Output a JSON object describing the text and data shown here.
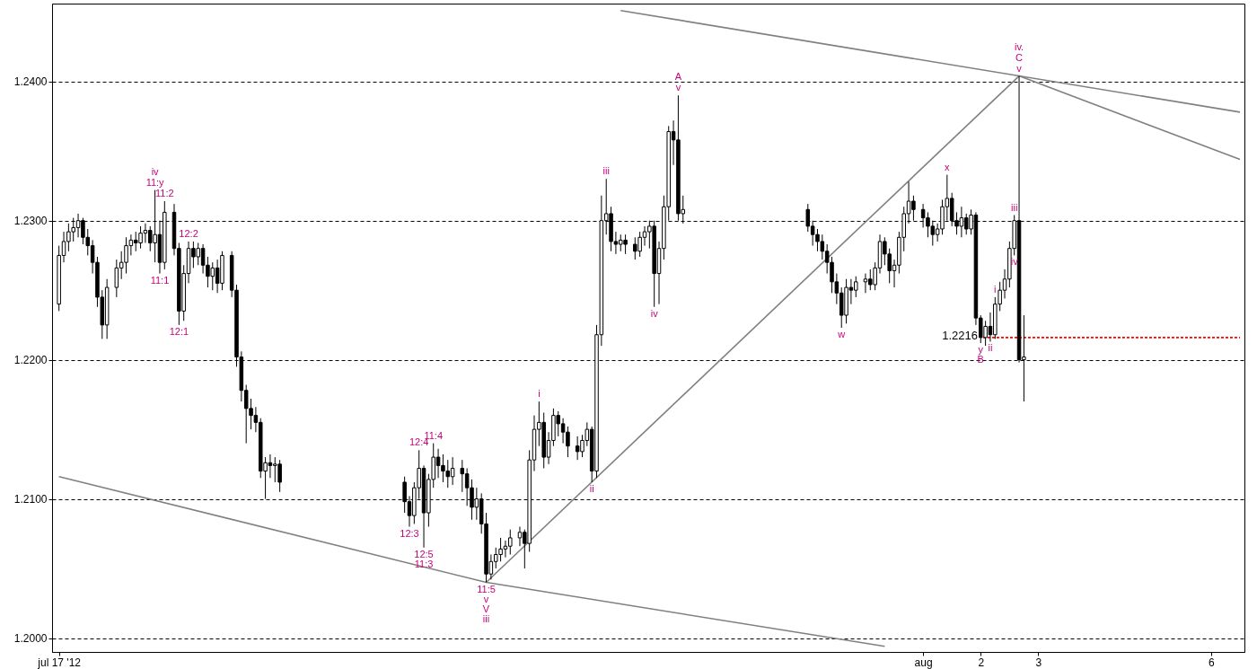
{
  "chart_data": {
    "type": "candlestick",
    "x": [
      "2012-07-17T00:00",
      "2012-07-17T02:00",
      "2012-07-17T04:00",
      "2012-07-17T06:00",
      "2012-07-17T08:00",
      "2012-07-17T10:00",
      "2012-07-17T12:00",
      "2012-07-17T14:00",
      "2012-07-17T16:00",
      "2012-07-17T18:00",
      "2012-07-17T20:00",
      "2012-07-18T00:00",
      "2012-07-18T02:00",
      "2012-07-18T04:00",
      "2012-07-18T06:00",
      "2012-07-18T08:00",
      "2012-07-18T10:00",
      "2012-07-18T12:00",
      "2012-07-18T14:00",
      "2012-07-18T16:00",
      "2012-07-18T18:00",
      "2012-07-18T20:00",
      "2012-07-19T00:00",
      "2012-07-19T02:00",
      "2012-07-19T04:00",
      "2012-07-19T06:00",
      "2012-07-19T08:00",
      "2012-07-19T10:00",
      "2012-07-19T12:00",
      "2012-07-19T14:00",
      "2012-07-19T16:00",
      "2012-07-19T18:00",
      "2012-07-19T20:00",
      "2012-07-20T00:00",
      "2012-07-20T02:00",
      "2012-07-20T04:00",
      "2012-07-20T06:00",
      "2012-07-20T08:00",
      "2012-07-20T10:00",
      "2012-07-20T12:00",
      "2012-07-20T14:00",
      "2012-07-20T16:00",
      "2012-07-20T18:00",
      "2012-07-20T20:00",
      "2012-07-23T00:00",
      "2012-07-23T02:00",
      "2012-07-23T04:00",
      "2012-07-23T06:00",
      "2012-07-23T08:00",
      "2012-07-23T10:00",
      "2012-07-23T12:00",
      "2012-07-23T14:00",
      "2012-07-23T16:00",
      "2012-07-23T18:00",
      "2012-07-23T20:00",
      "2012-07-24T00:00",
      "2012-07-24T02:00",
      "2012-07-24T04:00",
      "2012-07-24T06:00",
      "2012-07-24T08:00",
      "2012-07-24T10:00",
      "2012-07-24T12:00",
      "2012-07-24T14:00",
      "2012-07-24T16:00",
      "2012-07-24T18:00",
      "2012-07-24T20:00",
      "2012-07-25T00:00",
      "2012-07-25T02:00",
      "2012-07-25T04:00",
      "2012-07-25T06:00",
      "2012-07-25T08:00",
      "2012-07-25T10:00",
      "2012-07-25T12:00",
      "2012-07-25T14:00",
      "2012-07-25T16:00",
      "2012-07-25T18:00",
      "2012-07-25T20:00",
      "2012-07-26T00:00",
      "2012-07-26T02:00",
      "2012-07-26T04:00",
      "2012-07-26T06:00",
      "2012-07-26T08:00",
      "2012-07-26T10:00",
      "2012-07-26T12:00",
      "2012-07-26T14:00",
      "2012-07-26T16:00",
      "2012-07-26T18:00",
      "2012-07-26T20:00",
      "2012-07-27T00:00",
      "2012-07-27T02:00",
      "2012-07-27T04:00",
      "2012-07-27T06:00",
      "2012-07-27T08:00",
      "2012-07-27T10:00",
      "2012-07-27T12:00",
      "2012-07-27T14:00",
      "2012-07-27T16:00",
      "2012-07-27T18:00",
      "2012-07-27T20:00",
      "2012-07-30T00:00",
      "2012-07-30T02:00",
      "2012-07-30T04:00",
      "2012-07-30T06:00",
      "2012-07-30T08:00",
      "2012-07-30T10:00",
      "2012-07-30T12:00",
      "2012-07-30T14:00",
      "2012-07-30T16:00",
      "2012-07-30T18:00",
      "2012-07-30T20:00",
      "2012-07-31T00:00",
      "2012-07-31T02:00",
      "2012-07-31T04:00",
      "2012-07-31T06:00",
      "2012-07-31T08:00",
      "2012-07-31T10:00",
      "2012-07-31T12:00",
      "2012-07-31T14:00",
      "2012-07-31T16:00",
      "2012-07-31T18:00",
      "2012-07-31T20:00",
      "2012-08-01T00:00",
      "2012-08-01T02:00",
      "2012-08-01T04:00",
      "2012-08-01T06:00",
      "2012-08-01T08:00",
      "2012-08-01T10:00",
      "2012-08-01T12:00",
      "2012-08-01T14:00",
      "2012-08-01T16:00",
      "2012-08-01T18:00",
      "2012-08-01T20:00",
      "2012-08-01T22:00",
      "2012-08-02T00:00",
      "2012-08-02T02:00",
      "2012-08-02T04:00",
      "2012-08-02T06:00",
      "2012-08-02T08:00",
      "2012-08-02T10:00",
      "2012-08-02T12:00",
      "2012-08-02T14:00",
      "2012-08-02T16:00",
      "2012-08-02T18:00"
    ],
    "ohlc": [
      [
        1.224,
        1.2282,
        1.2235,
        1.2275
      ],
      [
        1.2275,
        1.2292,
        1.227,
        1.2285
      ],
      [
        1.2285,
        1.2298,
        1.2278,
        1.2292
      ],
      [
        1.2292,
        1.2302,
        1.2285,
        1.2295
      ],
      [
        1.2295,
        1.2305,
        1.2288,
        1.23
      ],
      [
        1.23,
        1.2302,
        1.2283,
        1.2288
      ],
      [
        1.2288,
        1.2294,
        1.2275,
        1.2282
      ],
      [
        1.2282,
        1.2286,
        1.2262,
        1.227
      ],
      [
        1.227,
        1.2274,
        1.2238,
        1.2245
      ],
      [
        1.2245,
        1.225,
        1.2215,
        1.2225
      ],
      [
        1.2225,
        1.2258,
        1.2215,
        1.2252
      ],
      [
        1.2252,
        1.2272,
        1.2245,
        1.2266
      ],
      [
        1.2266,
        1.2278,
        1.2258,
        1.227
      ],
      [
        1.227,
        1.2288,
        1.2262,
        1.2282
      ],
      [
        1.2282,
        1.229,
        1.2275,
        1.2286
      ],
      [
        1.2286,
        1.2292,
        1.2278,
        1.2284
      ],
      [
        1.2284,
        1.2296,
        1.228,
        1.2291
      ],
      [
        1.2291,
        1.2298,
        1.2284,
        1.2293
      ],
      [
        1.2293,
        1.2296,
        1.2278,
        1.2284
      ],
      [
        1.2284,
        1.2322,
        1.227,
        1.229
      ],
      [
        1.229,
        1.23,
        1.2262,
        1.227
      ],
      [
        1.227,
        1.2314,
        1.2265,
        1.2306
      ],
      [
        1.2306,
        1.2312,
        1.2275,
        1.228
      ],
      [
        1.228,
        1.2284,
        1.2225,
        1.2235
      ],
      [
        1.2235,
        1.2268,
        1.2228,
        1.2262
      ],
      [
        1.2262,
        1.2285,
        1.2255,
        1.228
      ],
      [
        1.228,
        1.2285,
        1.2266,
        1.2274
      ],
      [
        1.2274,
        1.2284,
        1.2268,
        1.228
      ],
      [
        1.228,
        1.2283,
        1.2262,
        1.2268
      ],
      [
        1.2268,
        1.2274,
        1.2252,
        1.226
      ],
      [
        1.226,
        1.227,
        1.225,
        1.2266
      ],
      [
        1.2266,
        1.2272,
        1.2248,
        1.2255
      ],
      [
        1.2255,
        1.2278,
        1.225,
        1.2275
      ],
      [
        1.2275,
        1.2278,
        1.2245,
        1.225
      ],
      [
        1.225,
        1.2254,
        1.2195,
        1.2202
      ],
      [
        1.2202,
        1.2206,
        1.217,
        1.2178
      ],
      [
        1.2178,
        1.2182,
        1.214,
        1.2165
      ],
      [
        1.2165,
        1.2172,
        1.215,
        1.216
      ],
      [
        1.216,
        1.2166,
        1.2148,
        1.2155
      ],
      [
        1.2155,
        1.2158,
        1.2115,
        1.212
      ],
      [
        1.212,
        1.213,
        1.21,
        1.2126
      ],
      [
        1.2126,
        1.2132,
        1.2115,
        1.2124
      ],
      [
        1.2124,
        1.213,
        1.2112,
        1.2125
      ],
      [
        1.2125,
        1.2128,
        1.2105,
        1.2112
      ],
      [
        1.2112,
        1.2116,
        1.209,
        1.2098
      ],
      [
        1.2098,
        1.2102,
        1.208,
        1.2088
      ],
      [
        1.2088,
        1.2112,
        1.2082,
        1.2108
      ],
      [
        1.2108,
        1.2135,
        1.21,
        1.2122
      ],
      [
        1.2122,
        1.2124,
        1.2065,
        1.209
      ],
      [
        1.209,
        1.2118,
        1.208,
        1.2114
      ],
      [
        1.2114,
        1.214,
        1.2108,
        1.213
      ],
      [
        1.213,
        1.2136,
        1.2115,
        1.2124
      ],
      [
        1.2124,
        1.2132,
        1.2112,
        1.212
      ],
      [
        1.212,
        1.2128,
        1.2108,
        1.2116
      ],
      [
        1.2116,
        1.213,
        1.211,
        1.2122
      ],
      [
        1.2122,
        1.2128,
        1.2105,
        1.2118
      ],
      [
        1.2118,
        1.2122,
        1.2095,
        1.2108
      ],
      [
        1.2108,
        1.2114,
        1.2085,
        1.2094
      ],
      [
        1.2094,
        1.2108,
        1.2085,
        1.21
      ],
      [
        1.21,
        1.2104,
        1.2075,
        1.2082
      ],
      [
        1.2082,
        1.209,
        1.204,
        1.2046
      ],
      [
        1.2046,
        1.206,
        1.2042,
        1.2055
      ],
      [
        1.2055,
        1.2065,
        1.205,
        1.206
      ],
      [
        1.206,
        1.2072,
        1.2055,
        1.2064
      ],
      [
        1.2064,
        1.207,
        1.2058,
        1.2066
      ],
      [
        1.2066,
        1.2078,
        1.206,
        1.2072
      ],
      [
        1.2072,
        1.208,
        1.2066,
        1.2076
      ],
      [
        1.2076,
        1.2078,
        1.205,
        1.2068
      ],
      [
        1.2068,
        1.2135,
        1.2062,
        1.2128
      ],
      [
        1.2128,
        1.216,
        1.212,
        1.215
      ],
      [
        1.215,
        1.217,
        1.2138,
        1.2155
      ],
      [
        1.2155,
        1.2162,
        1.2122,
        1.213
      ],
      [
        1.213,
        1.2148,
        1.2125,
        1.2142
      ],
      [
        1.2142,
        1.2165,
        1.2138,
        1.216
      ],
      [
        1.216,
        1.2163,
        1.2145,
        1.2154
      ],
      [
        1.2154,
        1.2158,
        1.214,
        1.2148
      ],
      [
        1.2148,
        1.2152,
        1.213,
        1.2138
      ],
      [
        1.2138,
        1.2145,
        1.2128,
        1.2134
      ],
      [
        1.2134,
        1.2146,
        1.213,
        1.2142
      ],
      [
        1.2142,
        1.2155,
        1.2138,
        1.215
      ],
      [
        1.215,
        1.2152,
        1.2112,
        1.212
      ],
      [
        1.212,
        1.2225,
        1.2115,
        1.2218
      ],
      [
        1.2218,
        1.2318,
        1.221,
        1.23
      ],
      [
        1.23,
        1.233,
        1.229,
        1.2305
      ],
      [
        1.2305,
        1.231,
        1.2278,
        1.2285
      ],
      [
        1.2285,
        1.2292,
        1.2276,
        1.2283
      ],
      [
        1.2283,
        1.229,
        1.2278,
        1.2286
      ],
      [
        1.2286,
        1.229,
        1.2276,
        1.2283
      ],
      [
        1.2283,
        1.2288,
        1.2272,
        1.2278
      ],
      [
        1.2278,
        1.2292,
        1.2274,
        1.2288
      ],
      [
        1.2288,
        1.2296,
        1.2282,
        1.2292
      ],
      [
        1.2292,
        1.23,
        1.228,
        1.2296
      ],
      [
        1.2296,
        1.23,
        1.2238,
        1.2262
      ],
      [
        1.2262,
        1.2285,
        1.224,
        1.228
      ],
      [
        1.228,
        1.2318,
        1.2272,
        1.231
      ],
      [
        1.231,
        1.2368,
        1.23,
        1.2364
      ],
      [
        1.2364,
        1.2372,
        1.234,
        1.2358
      ],
      [
        1.2358,
        1.239,
        1.23,
        1.2305
      ],
      [
        1.2305,
        1.2318,
        1.2298,
        1.2308
      ],
      [
        1.2308,
        1.2312,
        1.2292,
        1.2296
      ],
      [
        1.2296,
        1.23,
        1.2282,
        1.229
      ],
      [
        1.229,
        1.2294,
        1.2278,
        1.2285
      ],
      [
        1.2285,
        1.229,
        1.2272,
        1.2278
      ],
      [
        1.2278,
        1.2283,
        1.2262,
        1.227
      ],
      [
        1.227,
        1.2274,
        1.2248,
        1.2256
      ],
      [
        1.2256,
        1.2262,
        1.224,
        1.2248
      ],
      [
        1.2248,
        1.2252,
        1.2223,
        1.2232
      ],
      [
        1.2232,
        1.2258,
        1.2226,
        1.2252
      ],
      [
        1.2252,
        1.2258,
        1.224,
        1.225
      ],
      [
        1.225,
        1.226,
        1.2245,
        1.2256
      ],
      [
        1.2256,
        1.2262,
        1.2248,
        1.2258
      ],
      [
        1.2258,
        1.2265,
        1.225,
        1.2254
      ],
      [
        1.2254,
        1.227,
        1.225,
        1.2266
      ],
      [
        1.2266,
        1.229,
        1.2262,
        1.2285
      ],
      [
        1.2285,
        1.2288,
        1.2268,
        1.2276
      ],
      [
        1.2276,
        1.228,
        1.2255,
        1.2264
      ],
      [
        1.2264,
        1.2272,
        1.2252,
        1.2268
      ],
      [
        1.2268,
        1.2292,
        1.2262,
        1.2288
      ],
      [
        1.2288,
        1.231,
        1.2278,
        1.2305
      ],
      [
        1.2305,
        1.2328,
        1.2298,
        1.2314
      ],
      [
        1.2314,
        1.2318,
        1.23,
        1.2308
      ],
      [
        1.2308,
        1.2312,
        1.2295,
        1.2302
      ],
      [
        1.2302,
        1.2306,
        1.2288,
        1.2296
      ],
      [
        1.2296,
        1.23,
        1.2282,
        1.229
      ],
      [
        1.229,
        1.2298,
        1.2285,
        1.2294
      ],
      [
        1.2294,
        1.2315,
        1.229,
        1.231
      ],
      [
        1.231,
        1.2333,
        1.23,
        1.2316
      ],
      [
        1.2316,
        1.232,
        1.2296,
        1.23
      ],
      [
        1.23,
        1.2306,
        1.229,
        1.2296
      ],
      [
        1.2296,
        1.231,
        1.2288,
        1.2302
      ],
      [
        1.2302,
        1.2305,
        1.229,
        1.2294
      ],
      [
        1.2294,
        1.2308,
        1.229,
        1.2304
      ],
      [
        1.2304,
        1.2306,
        1.2225,
        1.223
      ],
      [
        1.223,
        1.2232,
        1.2212,
        1.2216
      ],
      [
        1.2216,
        1.2228,
        1.221,
        1.2224
      ],
      [
        1.2224,
        1.2234,
        1.2213,
        1.2218
      ],
      [
        1.2218,
        1.2245,
        1.2215,
        1.224
      ],
      [
        1.224,
        1.2256,
        1.2235,
        1.225
      ],
      [
        1.225,
        1.2265,
        1.2244,
        1.2258
      ],
      [
        1.2258,
        1.2285,
        1.2252,
        1.228
      ],
      [
        1.228,
        1.2304,
        1.2275,
        1.23
      ],
      [
        1.23,
        1.2404,
        1.2198,
        1.22
      ],
      [
        1.22,
        1.2232,
        1.217,
        1.2202
      ]
    ],
    "series": [
      {
        "type": "line",
        "color": "#808080",
        "x": [
          "2012-07-17T00:00",
          "2012-07-24T10:00",
          "2012-07-31T08:00"
        ],
        "values": [
          1.2116,
          1.204,
          1.1994
        ]
      },
      {
        "type": "line",
        "color": "#808080",
        "x": [
          "2012-07-24T10:00",
          "2012-08-02T16:00"
        ],
        "values": [
          1.204,
          1.2404
        ]
      },
      {
        "type": "line",
        "color": "#808080",
        "x": [
          "2012-07-26T18:00",
          "2012-08-06T12:00"
        ],
        "values": [
          1.2451,
          1.2378
        ]
      },
      {
        "type": "line",
        "color": "#808080",
        "x": [
          "2012-08-02T16:00",
          "2012-08-06T12:00"
        ],
        "values": [
          1.2404,
          1.2344
        ]
      },
      {
        "type": "line",
        "color": "#ff0000",
        "line_style": "dashed",
        "x": [
          "2012-08-02T01:00",
          "2012-08-06T12:00"
        ],
        "values": [
          1.2216,
          1.2216
        ]
      }
    ],
    "xlim": [
      "2012-07-16T23:00",
      "2012-08-06T12:00"
    ],
    "xticks": [
      {
        "value": "2012-07-17",
        "label": "jul 17 '12"
      },
      {
        "value": "2012-08-01",
        "label": "aug"
      },
      {
        "value": "2012-08-02",
        "label": "2"
      },
      {
        "value": "2012-08-03",
        "label": "3"
      },
      {
        "value": "2012-08-06",
        "label": "6"
      }
    ],
    "ylim": [
      1.199,
      1.2456
    ],
    "yticks": [
      {
        "value": 1.2,
        "label": "1.2000"
      },
      {
        "value": 1.21,
        "label": "1.2100"
      },
      {
        "value": 1.22,
        "label": "1.2200"
      },
      {
        "value": 1.23,
        "label": "1.2300"
      },
      {
        "value": 1.24,
        "label": "1.2400"
      }
    ],
    "grid": "y",
    "annotations": [
      {
        "text": "11:y",
        "x": "2012-07-18T16:00",
        "y": 1.2322
      },
      {
        "text": "iv",
        "x": "2012-07-18T16:00",
        "y": 1.2322
      },
      {
        "text": "11:2",
        "x": "2012-07-18T20:00",
        "y": 1.2314
      },
      {
        "text": "12:2",
        "x": "2012-07-19T06:00",
        "y": 1.2285
      },
      {
        "text": "11:1",
        "x": "2012-07-18T18:00",
        "y": 1.2262
      },
      {
        "text": "12:1",
        "x": "2012-07-19T02:00",
        "y": 1.2225
      },
      {
        "text": "12:3",
        "x": "2012-07-23T02:00",
        "y": 1.208
      },
      {
        "text": "12:4",
        "x": "2012-07-23T06:00",
        "y": 1.2135
      },
      {
        "text": "12:5",
        "x": "2012-07-23T08:00",
        "y": 1.2065
      },
      {
        "text": "11:3",
        "x": "2012-07-23T08:00",
        "y": 1.2065
      },
      {
        "text": "11:4",
        "x": "2012-07-23T12:00",
        "y": 1.214
      },
      {
        "text": "11:5",
        "x": "2012-07-24T10:00",
        "y": 1.204
      },
      {
        "text": "v",
        "x": "2012-07-24T10:00",
        "y": 1.204
      },
      {
        "text": "V",
        "x": "2012-07-24T10:00",
        "y": 1.204
      },
      "iii",
      {
        "text": "i",
        "x": "2012-07-25T08:00",
        "y": 1.217
      },
      {
        "text": "ii",
        "x": "2012-07-26T06:00",
        "y": 1.2112
      },
      {
        "text": "iii",
        "x": "2012-07-26T12:00",
        "y": 1.233
      },
      {
        "text": "iv",
        "x": "2012-07-27T08:00",
        "y": 1.2238
      },
      {
        "text": "v",
        "x": "2012-07-27T18:00",
        "y": 1.239
      },
      {
        "text": "A",
        "x": "2012-07-27T18:00",
        "y": 1.239
      },
      {
        "text": "w",
        "x": "2012-07-30T14:00",
        "y": 1.2223
      },
      {
        "text": "x",
        "x": "2012-08-01T10:00",
        "y": 1.2333
      },
      {
        "text": "y",
        "x": "2012-08-02T00:00",
        "y": 1.2212
      },
      {
        "text": "B",
        "x": "2012-08-02T00:00",
        "y": 1.2212
      },
      {
        "text": "1.2216",
        "x": "2012-08-02T01:00",
        "y": 1.2216
      },
      {
        "text": "ii",
        "x": "2012-08-02T04:00",
        "y": 1.2213
      },
      {
        "text": "i",
        "x": "2012-08-02T06:00",
        "y": 1.2245
      },
      {
        "text": "iii",
        "x": "2012-08-02T14:00",
        "y": 1.2304
      },
      {
        "text": "iv",
        "x": "2012-08-02T14:00",
        "y": 1.2275
      },
      {
        "text": "v",
        "x": "2012-08-02T16:00",
        "y": 1.2404
      },
      {
        "text": "C",
        "x": "2012-08-02T16:00",
        "y": 1.2404
      },
      {
        "text": "iv.",
        "x": "2012-08-02T16:00",
        "y": 1.2404
      }
    ]
  }
}
